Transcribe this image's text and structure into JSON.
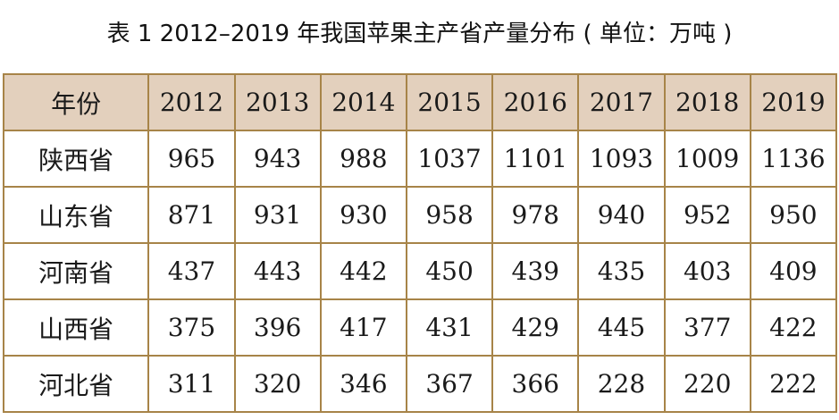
{
  "title": "表 1  2012–2019 年我国苹果主产省产量分布 ( 单位：万吨 )",
  "table": {
    "corner": "年份",
    "years": [
      "2012",
      "2013",
      "2014",
      "2015",
      "2016",
      "2017",
      "2018",
      "2019"
    ],
    "rows": [
      {
        "province": "陕西省",
        "values": [
          "965",
          "943",
          "988",
          "1037",
          "1101",
          "1093",
          "1009",
          "1136"
        ]
      },
      {
        "province": "山东省",
        "values": [
          "871",
          "931",
          "930",
          "958",
          "978",
          "940",
          "952",
          "950"
        ]
      },
      {
        "province": "河南省",
        "values": [
          "437",
          "443",
          "442",
          "450",
          "439",
          "435",
          "403",
          "409"
        ]
      },
      {
        "province": "山西省",
        "values": [
          "375",
          "396",
          "417",
          "431",
          "429",
          "445",
          "377",
          "422"
        ]
      },
      {
        "province": "河北省",
        "values": [
          "311",
          "320",
          "346",
          "367",
          "366",
          "228",
          "220",
          "222"
        ]
      }
    ]
  },
  "colors": {
    "header_background": "#e3d0bd",
    "border": "#a78448",
    "text": "#1a1a1a"
  }
}
